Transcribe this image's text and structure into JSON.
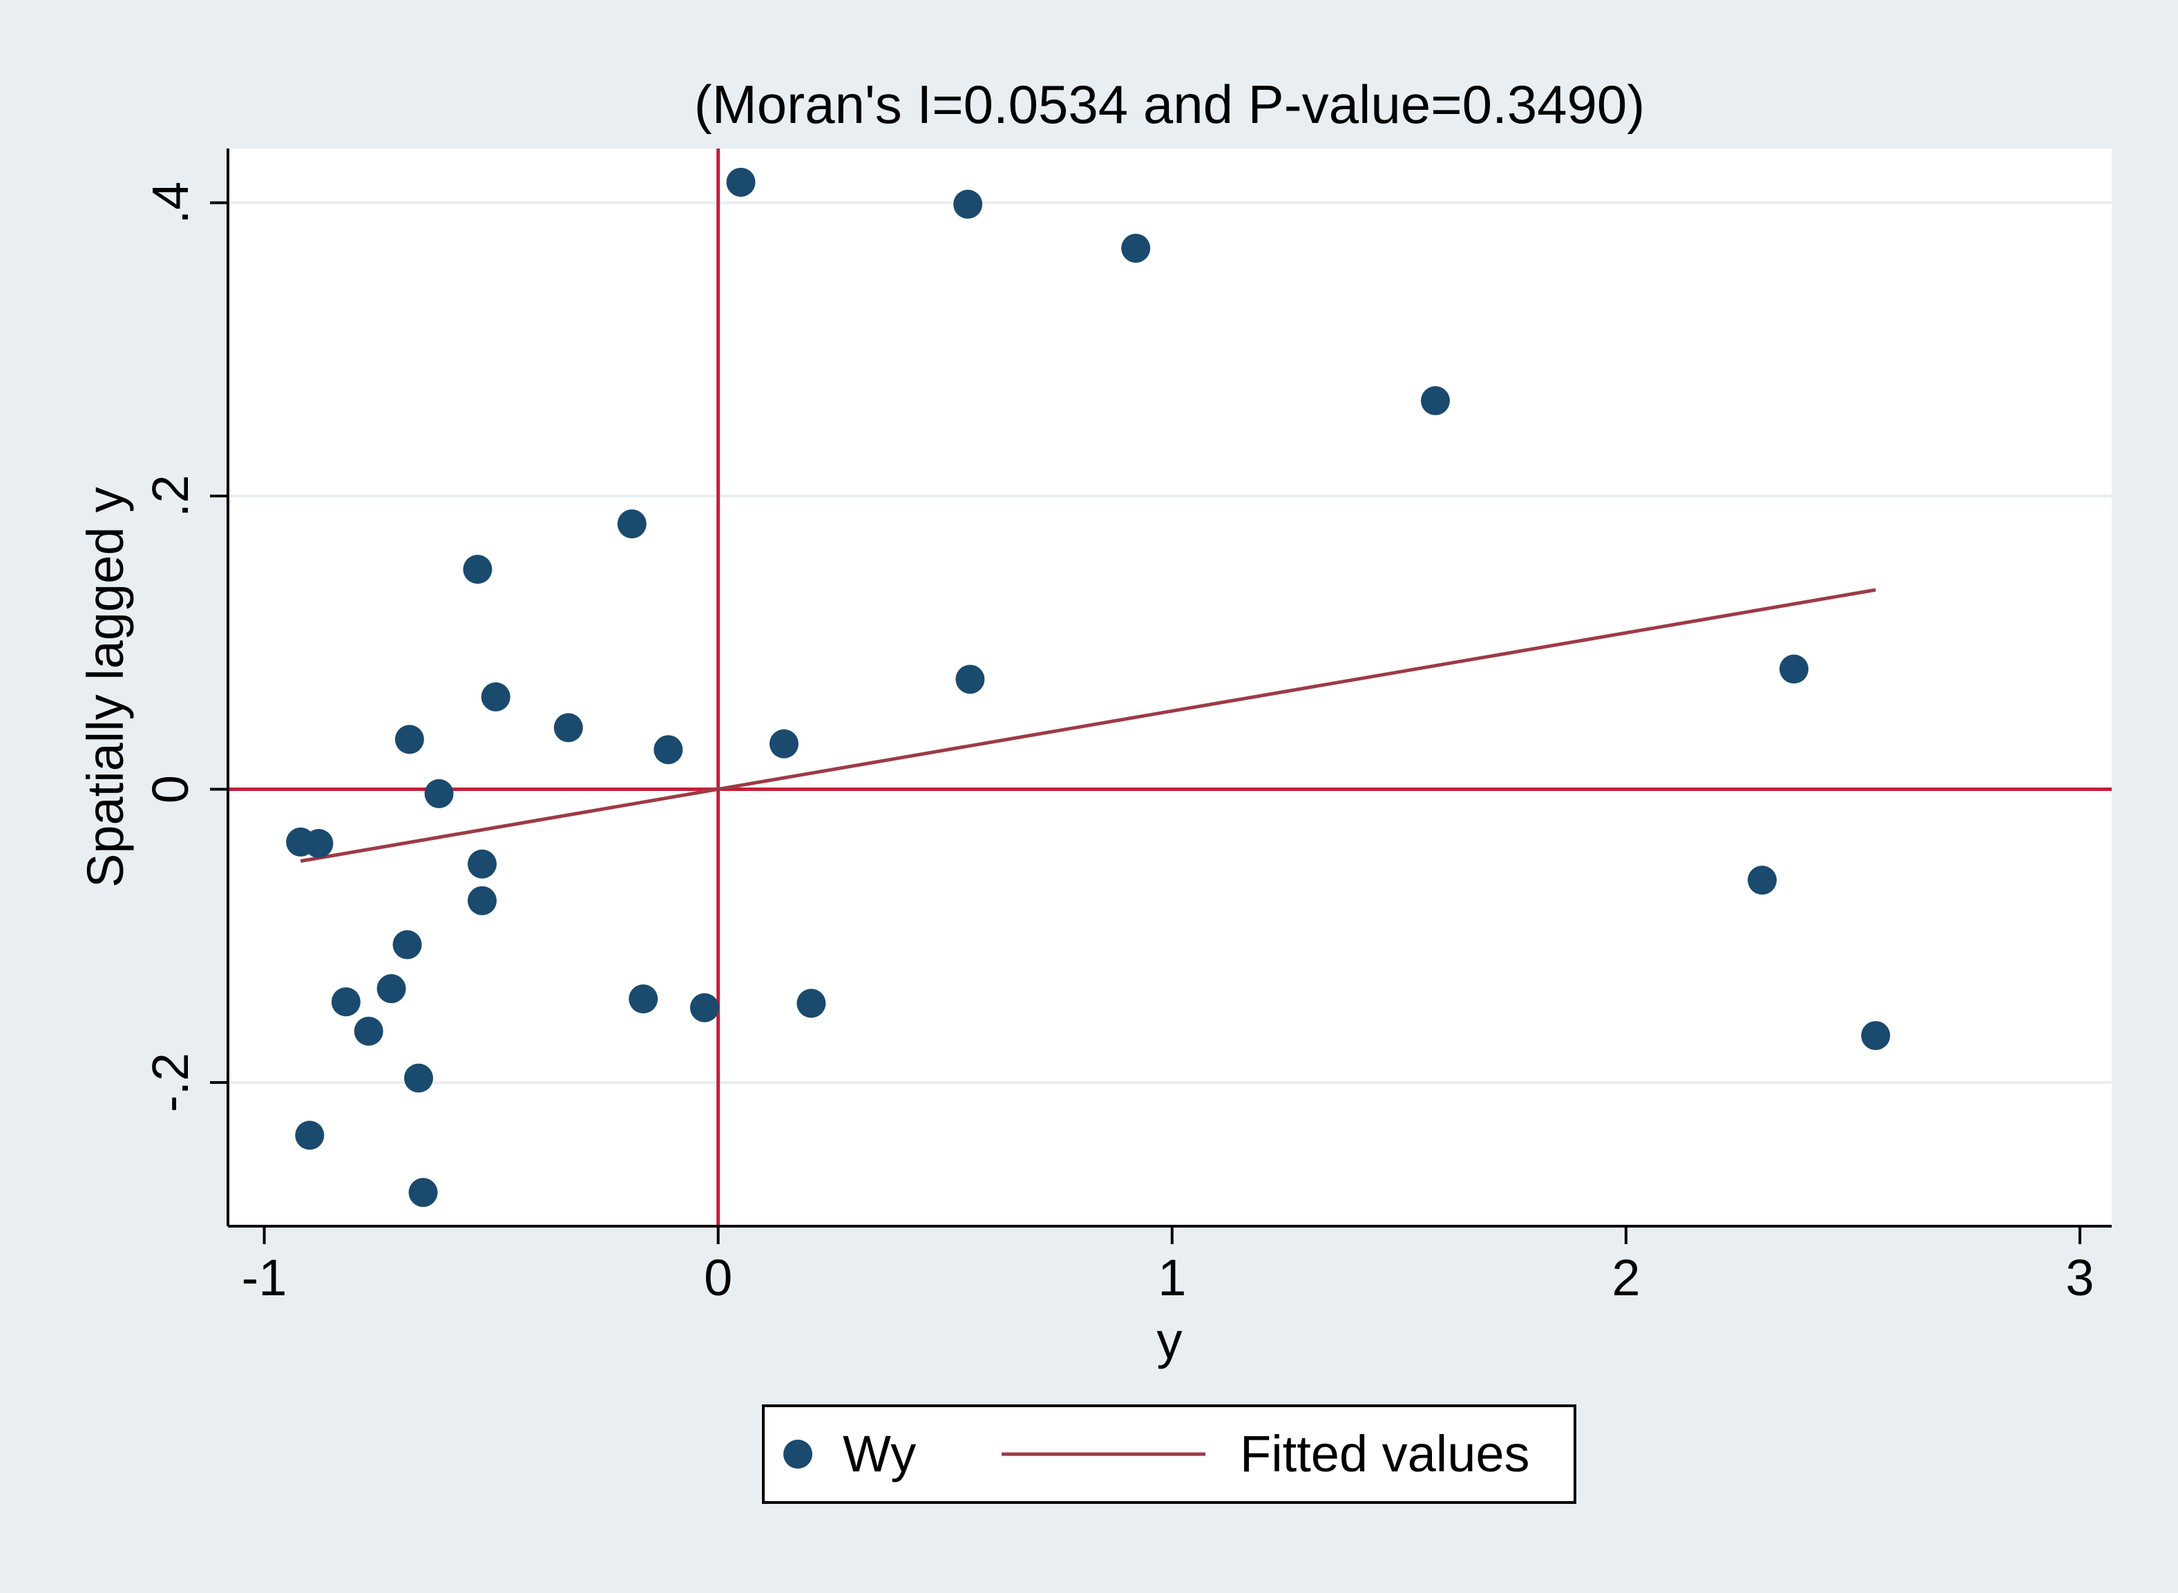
{
  "colors": {
    "background": "#e9eef2",
    "plot_background": "#ffffff",
    "gridline": "#e8eef2",
    "marker": "#1a4a6e",
    "fit_line": "#9e3a46",
    "reference_line": "#c41e3a",
    "axis": "#000000"
  },
  "chart_data": {
    "type": "scatter",
    "title": "(Moran's I=0.0534 and P-value=0.3490)",
    "xlabel": "y",
    "ylabel": "Spatially lagged y",
    "xlim": [
      -1.08,
      3.07
    ],
    "ylim": [
      -0.298,
      0.437
    ],
    "xticks": [
      -1,
      0,
      1,
      2,
      3
    ],
    "xtick_labels": [
      "-1",
      "0",
      "1",
      "2",
      "3"
    ],
    "yticks": [
      -0.2,
      0,
      0.2,
      0.4
    ],
    "ytick_labels": [
      "-.2",
      "0",
      ".2",
      ".4"
    ],
    "grid": true,
    "reference_lines": {
      "x": 0,
      "y": 0
    },
    "series": [
      {
        "name": "Wy",
        "kind": "scatter",
        "points": [
          {
            "x": 0.05,
            "y": 0.414
          },
          {
            "x": 0.55,
            "y": 0.399
          },
          {
            "x": 0.92,
            "y": 0.369
          },
          {
            "x": 1.58,
            "y": 0.265
          },
          {
            "x": -0.19,
            "y": 0.181
          },
          {
            "x": -0.53,
            "y": 0.15
          },
          {
            "x": 0.555,
            "y": 0.075
          },
          {
            "x": 2.37,
            "y": 0.082
          },
          {
            "x": -0.49,
            "y": 0.063
          },
          {
            "x": -0.33,
            "y": 0.042
          },
          {
            "x": -0.68,
            "y": 0.034
          },
          {
            "x": -0.11,
            "y": 0.027
          },
          {
            "x": 0.145,
            "y": 0.031
          },
          {
            "x": -0.615,
            "y": -0.003
          },
          {
            "x": -0.92,
            "y": -0.036
          },
          {
            "x": -0.88,
            "y": -0.037
          },
          {
            "x": -0.52,
            "y": -0.051
          },
          {
            "x": -0.52,
            "y": -0.076
          },
          {
            "x": 2.3,
            "y": -0.062
          },
          {
            "x": -0.685,
            "y": -0.106
          },
          {
            "x": -0.72,
            "y": -0.136
          },
          {
            "x": -0.82,
            "y": -0.145
          },
          {
            "x": -0.77,
            "y": -0.165
          },
          {
            "x": -0.165,
            "y": -0.143
          },
          {
            "x": -0.03,
            "y": -0.149
          },
          {
            "x": 0.205,
            "y": -0.146
          },
          {
            "x": 2.55,
            "y": -0.168
          },
          {
            "x": -0.66,
            "y": -0.197
          },
          {
            "x": -0.9,
            "y": -0.236
          },
          {
            "x": -0.65,
            "y": -0.275
          }
        ]
      },
      {
        "name": "Fitted values",
        "kind": "line",
        "points": [
          {
            "x": -0.92,
            "y": -0.049
          },
          {
            "x": 2.55,
            "y": 0.136
          }
        ]
      }
    ],
    "legend": {
      "position": "bottom-center",
      "entries": [
        "Wy",
        "Fitted values"
      ]
    }
  }
}
